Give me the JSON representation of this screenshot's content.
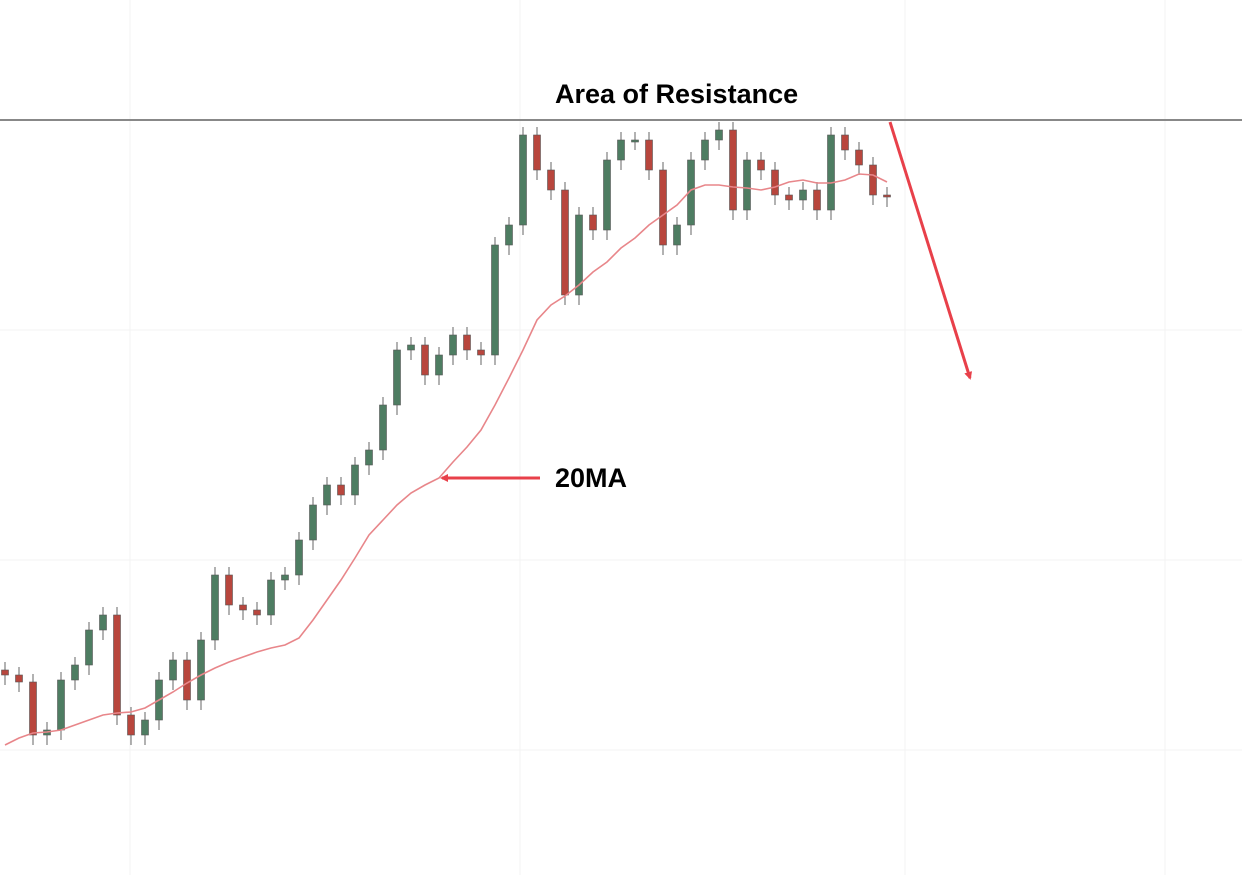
{
  "chart_data": {
    "type": "candlestick",
    "annotations": [
      "Area of Resistance",
      "20MA"
    ],
    "ylim": [
      0,
      875
    ],
    "resistance": 755,
    "up_color": "#4e7d62",
    "down_color": "#b8463d",
    "ma_color": "#e8868a",
    "line_color": "#888888",
    "open": [
      205,
      200,
      193,
      140,
      145,
      195,
      210,
      245,
      260,
      160,
      140,
      155,
      195,
      215,
      175,
      235,
      300,
      270,
      265,
      260,
      295,
      300,
      335,
      370,
      390,
      380,
      410,
      425,
      470,
      525,
      530,
      500,
      520,
      540,
      525,
      520,
      630,
      650,
      740,
      705,
      685,
      580,
      660,
      645,
      715,
      735,
      735,
      705,
      630,
      650,
      715,
      735,
      745,
      665,
      715,
      705,
      680,
      675,
      685,
      665,
      740,
      725,
      710,
      680
    ],
    "high": [
      213,
      208,
      201,
      153,
      203,
      218,
      253,
      268,
      268,
      168,
      163,
      203,
      223,
      223,
      243,
      308,
      308,
      278,
      273,
      303,
      308,
      343,
      378,
      398,
      398,
      418,
      433,
      478,
      533,
      538,
      538,
      528,
      548,
      548,
      533,
      638,
      658,
      748,
      748,
      713,
      693,
      668,
      668,
      723,
      743,
      743,
      743,
      713,
      658,
      723,
      743,
      753,
      753,
      723,
      723,
      713,
      688,
      693,
      693,
      748,
      748,
      733,
      718,
      688
    ],
    "low": [
      190,
      183,
      130,
      130,
      135,
      185,
      200,
      235,
      150,
      130,
      130,
      145,
      185,
      165,
      165,
      225,
      260,
      255,
      250,
      250,
      285,
      290,
      325,
      360,
      370,
      370,
      400,
      415,
      460,
      515,
      490,
      490,
      510,
      515,
      510,
      510,
      620,
      640,
      695,
      675,
      570,
      570,
      635,
      635,
      705,
      725,
      695,
      620,
      620,
      640,
      705,
      725,
      655,
      655,
      695,
      670,
      665,
      665,
      655,
      655,
      715,
      700,
      670,
      668
    ],
    "close": [
      200,
      193,
      140,
      145,
      195,
      210,
      245,
      260,
      160,
      140,
      155,
      195,
      215,
      175,
      235,
      300,
      270,
      265,
      260,
      295,
      300,
      335,
      370,
      390,
      380,
      410,
      425,
      470,
      525,
      530,
      500,
      520,
      540,
      525,
      520,
      630,
      650,
      740,
      705,
      685,
      580,
      660,
      645,
      715,
      735,
      735,
      705,
      630,
      650,
      715,
      735,
      745,
      665,
      715,
      705,
      680,
      675,
      685,
      665,
      740,
      725,
      710,
      680,
      678
    ],
    "ma": [
      130,
      137,
      142,
      143,
      145,
      150,
      155,
      160,
      162,
      163,
      167,
      175,
      183,
      192,
      200,
      207,
      213,
      218,
      223,
      227,
      230,
      237,
      255,
      275,
      295,
      317,
      340,
      355,
      370,
      382,
      390,
      397,
      413,
      428,
      445,
      470,
      497,
      525,
      555,
      570,
      579,
      590,
      603,
      613,
      627,
      637,
      650,
      660,
      670,
      685,
      690,
      690,
      688,
      687,
      685,
      688,
      693,
      695,
      692,
      692,
      695,
      701,
      700,
      693
    ]
  }
}
